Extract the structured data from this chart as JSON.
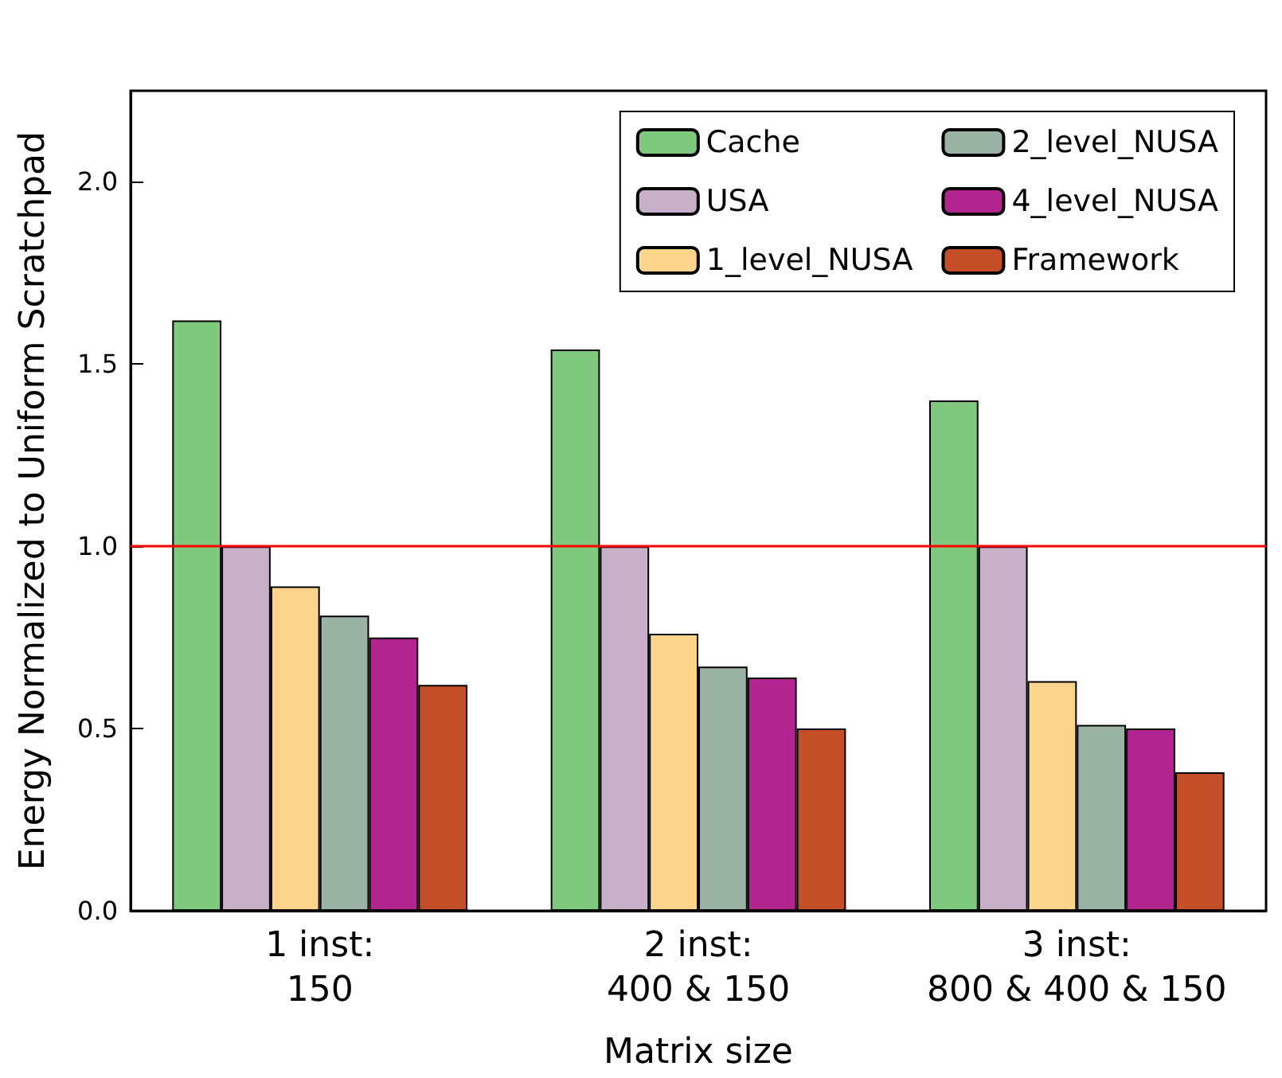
{
  "chart_data": {
    "type": "bar",
    "xlabel": "Matrix size",
    "ylabel": "Energy Normalized to Uniform Scratchpad",
    "categories": [
      "1 inst:\n150",
      "2 inst:\n400 & 150",
      "3 inst:\n800 & 400 & 150"
    ],
    "series": [
      {
        "name": "Cache",
        "color": "#7fc97f",
        "values": [
          1.62,
          1.54,
          1.4
        ]
      },
      {
        "name": "USA",
        "color": "#c9b0c9",
        "values": [
          1.0,
          1.0,
          1.0
        ]
      },
      {
        "name": "1_level_NUSA",
        "color": "#fdd48c",
        "values": [
          0.89,
          0.76,
          0.63
        ]
      },
      {
        "name": "2_level_NUSA",
        "color": "#9bb3a5",
        "values": [
          0.81,
          0.67,
          0.51
        ]
      },
      {
        "name": "4_level_NUSA",
        "color": "#b2258f",
        "values": [
          0.75,
          0.64,
          0.5
        ]
      },
      {
        "name": "Framework",
        "color": "#c44e27",
        "values": [
          0.62,
          0.5,
          0.38
        ]
      }
    ],
    "ylim": [
      0,
      2.25
    ],
    "yticks": [
      {
        "value": 0,
        "label": "0.0"
      },
      0.5,
      {
        "value": 1,
        "label": "1.0"
      },
      1.5,
      {
        "value": 2,
        "label": "2.0"
      }
    ],
    "ref_lines": [
      {
        "axis": "y",
        "value": 1.0,
        "color": "#ff0000"
      }
    ],
    "grid": false,
    "legend": "top right"
  }
}
